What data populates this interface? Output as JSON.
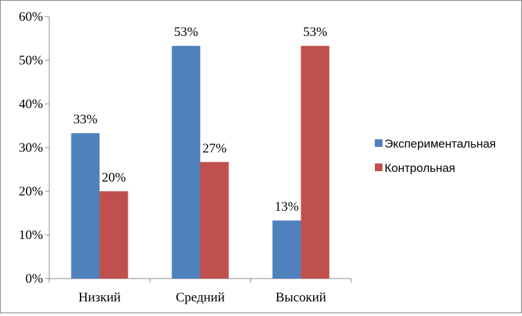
{
  "chart_data": {
    "type": "bar",
    "categories": [
      "Низкий",
      "Средний",
      "Высокий"
    ],
    "series": [
      {
        "name": "Экспериментальная",
        "values": [
          33.3,
          53.3,
          13.3
        ],
        "labels": [
          "33%",
          "53%",
          "13%"
        ],
        "color": "#4F81BD"
      },
      {
        "name": "Контрольная",
        "values": [
          20,
          26.7,
          53.3
        ],
        "labels": [
          "20%",
          "27%",
          "53%"
        ],
        "color": "#C0504D"
      }
    ],
    "yticks": [
      "0%",
      "10%",
      "20%",
      "30%",
      "40%",
      "50%",
      "60%"
    ],
    "ylim": [
      0,
      60
    ],
    "grid": false,
    "legend_position": "right"
  }
}
